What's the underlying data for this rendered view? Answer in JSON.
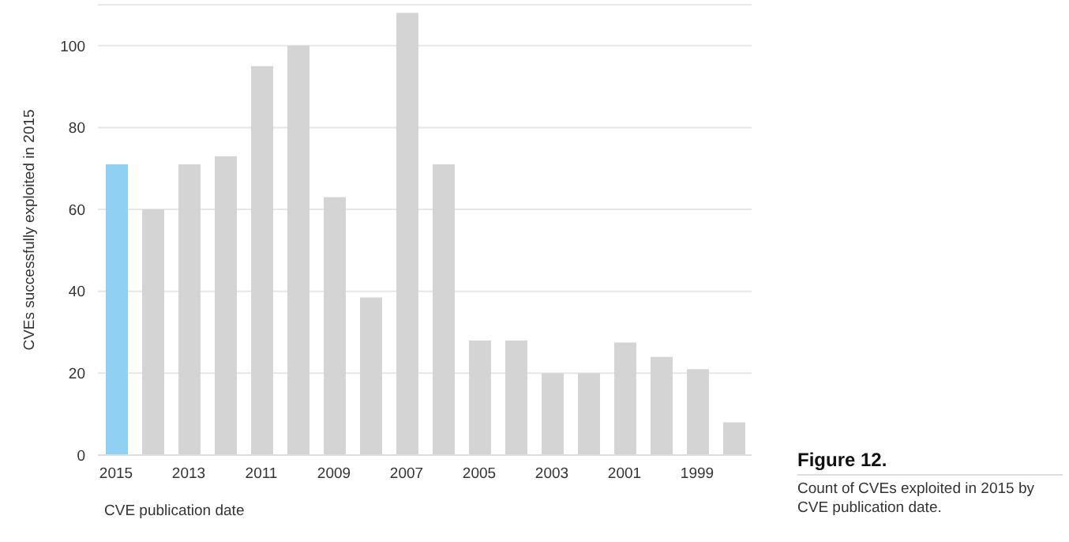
{
  "chart_data": {
    "type": "bar",
    "title": "Figure 12.",
    "xlabel": "CVE publication date",
    "ylabel": "CVEs successfully exploited in 2015",
    "annotations": [
      "Count of CVEs exploited in 2015 by CVE publication date."
    ],
    "categories": [
      "2015",
      null,
      "2013",
      null,
      "2011",
      null,
      "2009",
      null,
      "2007",
      null,
      "2005",
      null,
      "2003",
      null,
      "2001",
      null,
      "1999",
      null
    ],
    "values": [
      71,
      60,
      71,
      73,
      95,
      100,
      63,
      38.5,
      108,
      71,
      28,
      28,
      20,
      20,
      27.5,
      24,
      21,
      8
    ],
    "colors": [
      "#8fd0f3",
      "#d4d4d4",
      "#d4d4d4",
      "#d4d4d4",
      "#d4d4d4",
      "#d4d4d4",
      "#d4d4d4",
      "#d4d4d4",
      "#d4d4d4",
      "#d4d4d4",
      "#d4d4d4",
      "#d4d4d4",
      "#d4d4d4",
      "#d4d4d4",
      "#d4d4d4",
      "#d4d4d4",
      "#d4d4d4",
      "#d4d4d4"
    ],
    "ylim": [
      0,
      110
    ],
    "yticks": [
      0,
      20,
      40,
      60,
      80,
      100
    ],
    "grid": "y"
  }
}
